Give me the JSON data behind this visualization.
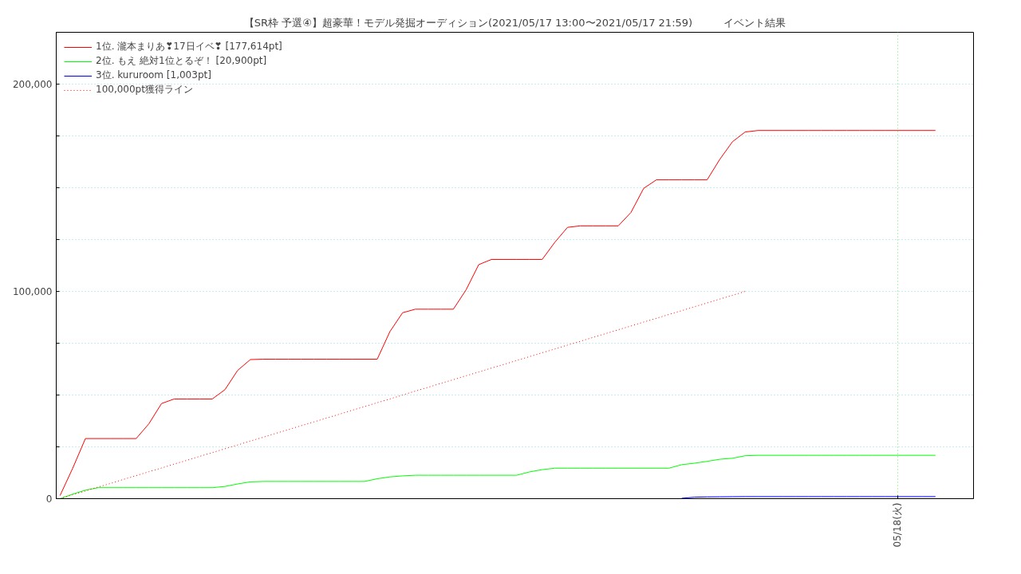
{
  "chart_data": {
    "type": "line",
    "title": "【SR枠 予選④】超豪華！モデル発掘オーディション(2021/05/17 13:00〜2021/05/17 21:59)　　　イベント結果",
    "categories": [
      null,
      null,
      null,
      null,
      null,
      null,
      null,
      null,
      null,
      null,
      null,
      null,
      null,
      null,
      null,
      null,
      null,
      null,
      null,
      null,
      null,
      null,
      null,
      null,
      null,
      null,
      null,
      null,
      null,
      null,
      null,
      null,
      null,
      null,
      null,
      null,
      null,
      null,
      null,
      null,
      null,
      null,
      null,
      null,
      null,
      null,
      null,
      null,
      null,
      null,
      null,
      null,
      null,
      null,
      null,
      null,
      null,
      null,
      null,
      null,
      null,
      null,
      null,
      null,
      null,
      null,
      "05/18(火)",
      null,
      null,
      null
    ],
    "ylim": [
      0,
      225000
    ],
    "yticks": [
      {
        "value": 0,
        "label": "0"
      },
      {
        "value": 25000,
        "label": null
      },
      {
        "value": 50000,
        "label": null
      },
      {
        "value": 75000,
        "label": null
      },
      {
        "value": 100000,
        "label": "100,000"
      },
      {
        "value": 125000,
        "label": null
      },
      {
        "value": 150000,
        "label": null
      },
      {
        "value": 175000,
        "label": null
      },
      {
        "value": 200000,
        "label": "200,000"
      }
    ],
    "grid": true,
    "legend": "top left",
    "series": [
      {
        "name": "1位. 瀧本まりあ❣17日イベ❣ [177,614pt]",
        "color": "#ff0000",
        "values": [
          1500,
          14700,
          29000,
          29000,
          29000,
          29000,
          29000,
          36100,
          45900,
          48100,
          48100,
          48100,
          48100,
          52600,
          61900,
          67100,
          67300,
          67300,
          67300,
          67300,
          67300,
          67300,
          67300,
          67300,
          67300,
          67300,
          80600,
          89700,
          91400,
          91400,
          91400,
          91400,
          100700,
          112900,
          115400,
          115400,
          115400,
          115400,
          115400,
          123700,
          130900,
          131600,
          131600,
          131600,
          131600,
          138100,
          149700,
          153800,
          153800,
          153800,
          153800,
          153800,
          163700,
          172200,
          176900,
          177614,
          177614,
          177614,
          177614,
          177614,
          177614,
          177614,
          177614,
          177614,
          177614,
          177614,
          177614,
          177614,
          177614,
          177614
        ]
      },
      {
        "name": "2位. もえ 絶対1位とるぞ！ [20,900pt]",
        "color": "#00ff00",
        "values": [
          0,
          2200,
          4100,
          5300,
          5300,
          5300,
          5300,
          5300,
          5300,
          5300,
          5300,
          5300,
          5300,
          5900,
          7100,
          8100,
          8300,
          8300,
          8300,
          8300,
          8300,
          8300,
          8300,
          8300,
          8300,
          9600,
          10500,
          11000,
          11300,
          11300,
          11300,
          11300,
          11300,
          11300,
          11300,
          11300,
          11300,
          12900,
          14000,
          14700,
          14700,
          14700,
          14700,
          14700,
          14700,
          14700,
          14700,
          14700,
          14700,
          16400,
          17100,
          18000,
          19000,
          19500,
          20700,
          20900,
          20900,
          20900,
          20900,
          20900,
          20900,
          20900,
          20900,
          20900,
          20900,
          20900,
          20900,
          20900,
          20900,
          20900
        ]
      },
      {
        "name": "3位. kururoom [1,003pt]",
        "color": "#0000ff",
        "values": [
          null,
          null,
          null,
          null,
          null,
          null,
          null,
          null,
          null,
          null,
          null,
          null,
          null,
          null,
          null,
          null,
          null,
          null,
          null,
          null,
          null,
          null,
          null,
          null,
          null,
          null,
          null,
          null,
          null,
          null,
          null,
          null,
          null,
          null,
          null,
          null,
          null,
          null,
          null,
          null,
          null,
          null,
          null,
          null,
          null,
          null,
          null,
          null,
          null,
          200,
          700,
          850,
          900,
          950,
          1000,
          1003,
          1003,
          1003,
          1003,
          1003,
          1003,
          1003,
          1003,
          1003,
          1003,
          1003,
          1003,
          1003,
          1003,
          1003
        ]
      },
      {
        "name": "100,000pt獲得ライン",
        "color": "#ff0000",
        "line_style": "dotted",
        "values": [
          0,
          1900,
          3700,
          5600,
          7400,
          9300,
          11100,
          13000,
          14800,
          16700,
          18500,
          20400,
          22200,
          24100,
          25900,
          27800,
          29600,
          31500,
          33300,
          35200,
          37000,
          38900,
          40700,
          42600,
          44400,
          46300,
          48100,
          50000,
          51900,
          53700,
          55600,
          57400,
          59300,
          61100,
          63000,
          64800,
          66700,
          68500,
          70400,
          72200,
          74100,
          75900,
          77800,
          79600,
          81500,
          83300,
          85200,
          87000,
          88900,
          90700,
          92600,
          94400,
          96300,
          98100,
          100000,
          null,
          null,
          null,
          null,
          null,
          null,
          null,
          null,
          null,
          null,
          null,
          null,
          null,
          null,
          null
        ]
      }
    ]
  }
}
